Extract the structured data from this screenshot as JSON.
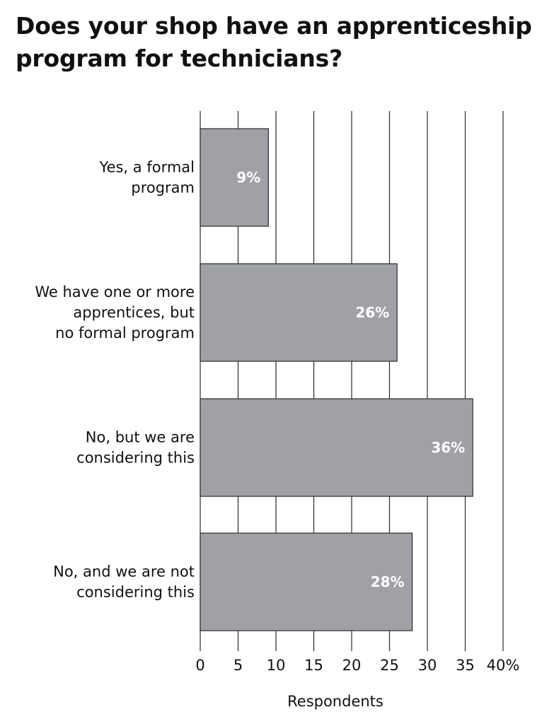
{
  "chart_data": {
    "type": "bar",
    "orientation": "horizontal",
    "title": "Does your shop have an apprenticeship program for technicians?",
    "categories": [
      [
        "Yes, a formal",
        "program"
      ],
      [
        "We have one or more",
        "apprentices, but",
        "no formal program"
      ],
      [
        "No, but we are",
        "considering this"
      ],
      [
        "No, and we are not",
        "considering this"
      ]
    ],
    "values": [
      9,
      26,
      36,
      28
    ],
    "value_labels": [
      "9%",
      "26%",
      "36%",
      "28%"
    ],
    "xlabel": "Respondents",
    "ylabel": "",
    "xlim": [
      0,
      40
    ],
    "x_ticks": [
      "0",
      "5",
      "10",
      "15",
      "20",
      "25",
      "30",
      "35",
      "40%"
    ],
    "grid": "vertical",
    "legend": "none",
    "colors": {
      "bar_fill": "#9fa1a6",
      "bar_stroke": "#2b2b2b",
      "grid": "#2b2b2b",
      "value_label": "#ffffff",
      "text": "#111111"
    }
  }
}
